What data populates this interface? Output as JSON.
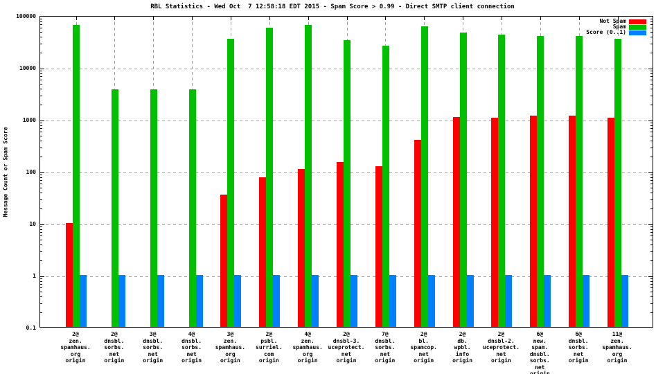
{
  "title": "RBL Statistics - Wed Oct  7 12:58:18 EDT 2015 - Spam Score > 0.99 - Direct SMTP client connection",
  "colors": {
    "not_spam": "#ff0000",
    "spam": "#00c000",
    "score": "#0080ff",
    "grid": "#a0a0a0",
    "axis": "#000000"
  },
  "chart_data": {
    "type": "bar",
    "title": "RBL Statistics - Wed Oct  7 12:58:18 EDT 2015 - Spam Score > 0.99 - Direct SMTP client connection",
    "xlabel": "",
    "ylabel": "Message Count or Spam Score",
    "y_scale": "log",
    "ylim": [
      0.1,
      100000
    ],
    "y_ticks": [
      100000,
      10000,
      1000,
      100,
      10,
      1,
      0.1
    ],
    "y_tick_labels": [
      "100000",
      "10000",
      "1000",
      "100",
      "10",
      "1",
      "0.1"
    ],
    "grid": true,
    "legend_position": "top-right-inside",
    "categories": [
      [
        "2@",
        "zen.",
        "spamhaus.",
        "org",
        "origin"
      ],
      [
        "2@",
        "dnsbl.",
        "sorbs.",
        "net",
        "origin"
      ],
      [
        "3@",
        "dnsbl.",
        "sorbs.",
        "net",
        "origin"
      ],
      [
        "4@",
        "dnsbl.",
        "sorbs.",
        "net",
        "origin"
      ],
      [
        "3@",
        "zen.",
        "spamhaus.",
        "org",
        "origin"
      ],
      [
        "2@",
        "psbl.",
        "surriel.",
        "com",
        "origin"
      ],
      [
        "4@",
        "zen.",
        "spamhaus.",
        "org",
        "origin"
      ],
      [
        "2@",
        "dnsbl-3.",
        "uceprotect.",
        "net",
        "origin"
      ],
      [
        "7@",
        "dnsbl.",
        "sorbs.",
        "net",
        "origin"
      ],
      [
        "2@",
        "bl.",
        "spamcop.",
        "net",
        "origin"
      ],
      [
        "2@",
        "db.",
        "wpbl.",
        "info",
        "origin"
      ],
      [
        "2@",
        "dnsbl-2.",
        "uceprotect.",
        "net",
        "origin"
      ],
      [
        "6@",
        "new.",
        "spam.",
        "dnsbl.",
        "sorbs.",
        "net",
        "origin"
      ],
      [
        "6@",
        "dnsbl.",
        "sorbs.",
        "net",
        "origin"
      ],
      [
        "11@",
        "zen.",
        "spamhaus.",
        "org",
        "origin"
      ]
    ],
    "series": [
      {
        "name": "Not Spam",
        "color": "#ff0000",
        "values": [
          10,
          0,
          0,
          0,
          35,
          75,
          110,
          150,
          125,
          400,
          1100,
          1050,
          1150,
          1150,
          1050
        ]
      },
      {
        "name": "Spam",
        "color": "#00c000",
        "values": [
          65000,
          3800,
          3800,
          3800,
          35000,
          58000,
          65000,
          33000,
          26000,
          62000,
          47000,
          42000,
          40000,
          40000,
          35000
        ]
      },
      {
        "name": "Score (0..1)",
        "color": "#0080ff",
        "values": [
          1,
          1,
          1,
          1,
          1,
          1,
          1,
          1,
          1,
          1,
          1,
          1,
          1,
          1,
          1
        ]
      }
    ]
  }
}
